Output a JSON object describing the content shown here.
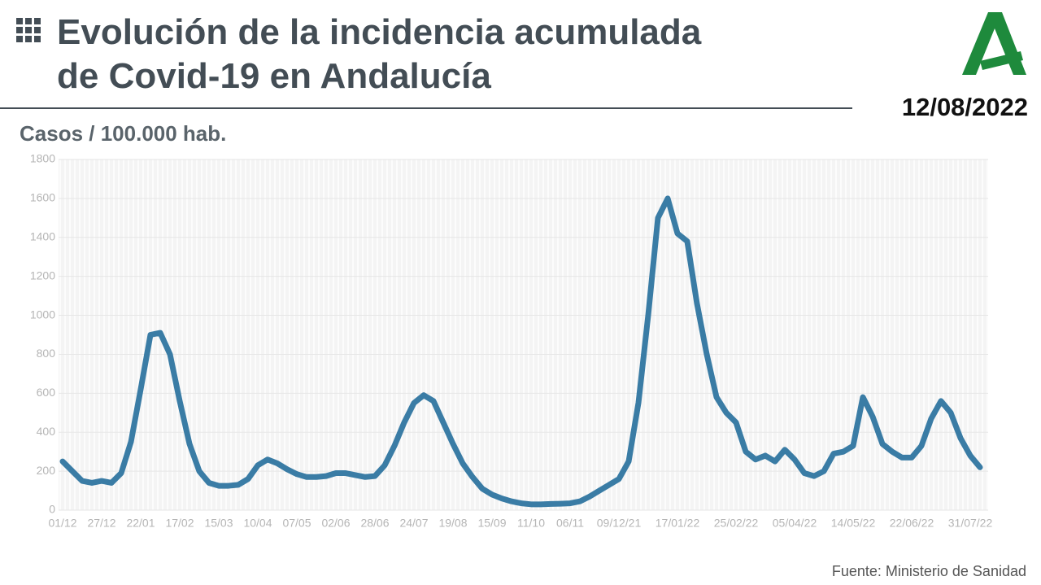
{
  "chart_data": {
    "type": "line",
    "title": [
      "Evolución de la incidencia acumulada",
      "de Covid-19 en Andalucía"
    ],
    "date": "12/08/2022",
    "ylabel": "Casos / 100.000 hab.",
    "source": "Fuente: Ministerio de Sanidad",
    "color": "#3a7ca5",
    "categories": [
      "01/12",
      null,
      null,
      null,
      "27/12",
      null,
      null,
      null,
      "22/01",
      null,
      null,
      null,
      "17/02",
      null,
      null,
      null,
      "15/03",
      null,
      null,
      null,
      "10/04",
      null,
      null,
      null,
      "07/05",
      null,
      null,
      null,
      "02/06",
      null,
      null,
      null,
      "28/06",
      null,
      null,
      null,
      "24/07",
      null,
      null,
      null,
      "19/08",
      null,
      null,
      null,
      "15/09",
      null,
      null,
      null,
      "11/10",
      null,
      null,
      null,
      "06/11",
      null,
      null,
      null,
      null,
      "09/12/21",
      null,
      null,
      null,
      null,
      null,
      "17/01/22",
      null,
      null,
      null,
      null,
      null,
      "25/02/22",
      null,
      null,
      null,
      null,
      null,
      "05/04/22",
      null,
      null,
      null,
      null,
      null,
      "14/05/22",
      null,
      null,
      null,
      null,
      null,
      "22/06/22",
      null,
      null,
      null,
      null,
      null,
      "31/07/22",
      null
    ],
    "values": [
      250,
      200,
      150,
      140,
      150,
      140,
      190,
      350,
      620,
      900,
      910,
      800,
      560,
      340,
      200,
      140,
      125,
      125,
      130,
      160,
      230,
      260,
      240,
      210,
      185,
      170,
      170,
      175,
      190,
      190,
      180,
      170,
      175,
      230,
      330,
      450,
      550,
      590,
      560,
      450,
      340,
      240,
      170,
      110,
      80,
      60,
      45,
      35,
      30,
      30,
      32,
      33,
      35,
      45,
      70,
      100,
      130,
      160,
      250,
      550,
      1000,
      1500,
      1600,
      1420,
      1380,
      1060,
      800,
      580,
      500,
      450,
      300,
      260,
      280,
      250,
      310,
      260,
      190,
      175,
      200,
      290,
      300,
      330,
      580,
      480,
      340,
      300,
      270,
      270,
      330,
      470,
      560,
      500,
      370,
      280,
      220
    ],
    "ylim": [
      0,
      1800
    ],
    "yticks": [
      0,
      200,
      400,
      600,
      800,
      1000,
      1200,
      1400,
      1600,
      1800
    ],
    "grid": true
  }
}
